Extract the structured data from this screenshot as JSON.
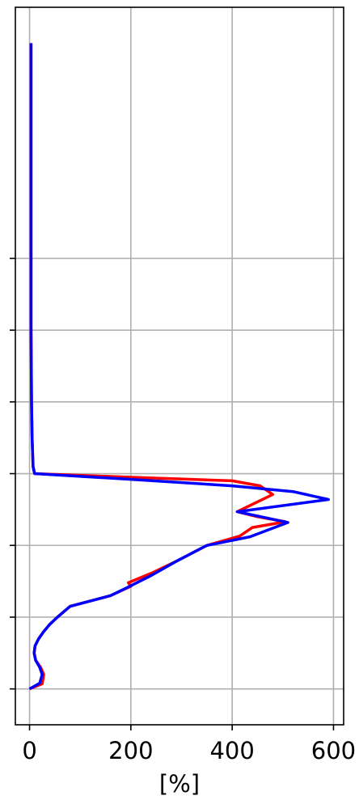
{
  "chart_data": {
    "type": "line",
    "title": "",
    "xlabel": "[%]",
    "ylabel": "",
    "xlim": [
      -28,
      620
    ],
    "ylim": [
      0,
      1000
    ],
    "x_ticks": [
      0,
      200,
      400,
      600
    ],
    "x_tick_labels": [
      "0",
      "200",
      "400",
      "600"
    ],
    "y_ticks": [
      50,
      150,
      250,
      350,
      450,
      550,
      650
    ],
    "y_tick_labels": [
      "",
      "",
      "",
      "",
      "",
      "",
      ""
    ],
    "grid": true,
    "legend": "none",
    "series": [
      {
        "color": "#ff0000",
        "points": [
          [
            0,
            50
          ],
          [
            25,
            57
          ],
          [
            28,
            70
          ],
          [
            22,
            80
          ],
          [
            12,
            90
          ],
          [
            9,
            100
          ],
          [
            11,
            110
          ],
          [
            18,
            120
          ],
          [
            28,
            130
          ],
          [
            40,
            140
          ],
          [
            55,
            150
          ],
          [
            80,
            165
          ],
          [
            160,
            180
          ],
          [
            200,
            193
          ],
          [
            195,
            198
          ],
          [
            240,
            211
          ],
          [
            290,
            228
          ],
          [
            350,
            250
          ],
          [
            415,
            263
          ],
          [
            440,
            275
          ],
          [
            505,
            283
          ],
          [
            450,
            290
          ],
          [
            410,
            297
          ],
          [
            480,
            321
          ],
          [
            455,
            333
          ],
          [
            400,
            340
          ],
          [
            200,
            345
          ],
          [
            10,
            350
          ],
          [
            7,
            360
          ],
          [
            5,
            400
          ],
          [
            4,
            450
          ],
          [
            3,
            550
          ],
          [
            3,
            650
          ],
          [
            3,
            750
          ],
          [
            3,
            850
          ],
          [
            3,
            950
          ]
        ]
      },
      {
        "color": "#0000ff",
        "points": [
          [
            0,
            50
          ],
          [
            20,
            58
          ],
          [
            25,
            70
          ],
          [
            20,
            80
          ],
          [
            12,
            90
          ],
          [
            9,
            100
          ],
          [
            11,
            110
          ],
          [
            18,
            120
          ],
          [
            28,
            130
          ],
          [
            40,
            140
          ],
          [
            55,
            150
          ],
          [
            80,
            165
          ],
          [
            160,
            180
          ],
          [
            195,
            192
          ],
          [
            240,
            208
          ],
          [
            290,
            228
          ],
          [
            350,
            250
          ],
          [
            435,
            262
          ],
          [
            510,
            282
          ],
          [
            410,
            297
          ],
          [
            590,
            314
          ],
          [
            520,
            325
          ],
          [
            400,
            333
          ],
          [
            200,
            342
          ],
          [
            10,
            350
          ],
          [
            7,
            360
          ],
          [
            5,
            400
          ],
          [
            4,
            450
          ],
          [
            3,
            550
          ],
          [
            3,
            650
          ],
          [
            3,
            750
          ],
          [
            3,
            850
          ],
          [
            3,
            950
          ]
        ]
      }
    ]
  }
}
